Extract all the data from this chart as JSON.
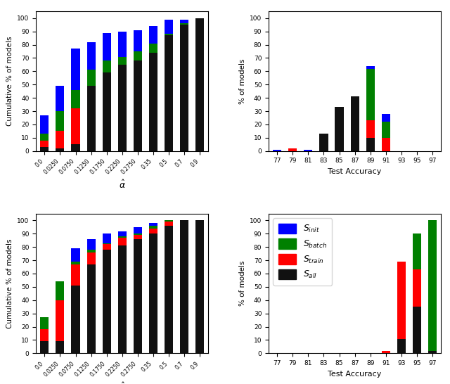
{
  "alpha_labels": [
    "0.0",
    "0.0250",
    "0.0750",
    "0.1250",
    "0.1750",
    "0.2250",
    "0.2750",
    "0.35",
    "0.5",
    "0.7",
    "0.9"
  ],
  "top_left": {
    "sinit": [
      27,
      49,
      77,
      82,
      89,
      90,
      91,
      94,
      99,
      99,
      100
    ],
    "sbatch": [
      13,
      30,
      46,
      61,
      68,
      71,
      75,
      81,
      88,
      96,
      100
    ],
    "strain": [
      8,
      15,
      32,
      49,
      59,
      65,
      68,
      74,
      87,
      95,
      100
    ],
    "sall": [
      3,
      2,
      5,
      49,
      59,
      65,
      68,
      74,
      87,
      95,
      100
    ]
  },
  "bottom_left": {
    "sinit": [
      27,
      54,
      79,
      86,
      90,
      92,
      95,
      98,
      100,
      100,
      100
    ],
    "sbatch": [
      27,
      54,
      69,
      78,
      83,
      88,
      90,
      96,
      100,
      100,
      100
    ],
    "strain": [
      18,
      40,
      67,
      76,
      82,
      87,
      89,
      94,
      99,
      100,
      100
    ],
    "sall": [
      9,
      9,
      51,
      67,
      78,
      81,
      86,
      90,
      96,
      100,
      100
    ]
  },
  "top_right": {
    "x_labels": [
      "77",
      "79",
      "81",
      "83",
      "85",
      "87",
      "89",
      "91",
      "93",
      "95",
      "97"
    ],
    "sinit": [
      1,
      1,
      1,
      1,
      1,
      6,
      64,
      28,
      0,
      0,
      0
    ],
    "sbatch": [
      0,
      0,
      0,
      1,
      1,
      6,
      62,
      22,
      0,
      0,
      0
    ],
    "strain": [
      0,
      2,
      0,
      1,
      1,
      41,
      23,
      10,
      0,
      0,
      0
    ],
    "sall": [
      0,
      0,
      0,
      13,
      33,
      41,
      10,
      0,
      0,
      0,
      0
    ]
  },
  "bottom_right": {
    "x_labels": [
      "77",
      "79",
      "81",
      "83",
      "85",
      "87",
      "89",
      "91",
      "93",
      "95",
      "97"
    ],
    "sinit": [
      0,
      0,
      0,
      0,
      0,
      0,
      0,
      2,
      10,
      90,
      100
    ],
    "sbatch": [
      0,
      0,
      0,
      0,
      0,
      0,
      0,
      0,
      9,
      90,
      100
    ],
    "strain": [
      0,
      0,
      0,
      0,
      0,
      0,
      0,
      2,
      69,
      63,
      2
    ],
    "sall": [
      0,
      0,
      0,
      0,
      0,
      0,
      0,
      0,
      11,
      35,
      2
    ]
  },
  "colors": {
    "sinit": "#0000FF",
    "sbatch": "#008000",
    "strain": "#FF0000",
    "sall": "#111111"
  },
  "legend_labels": [
    "$S_{init}$",
    "$S_{batch}$",
    "$S_{train}$",
    "$S_{all}$"
  ]
}
